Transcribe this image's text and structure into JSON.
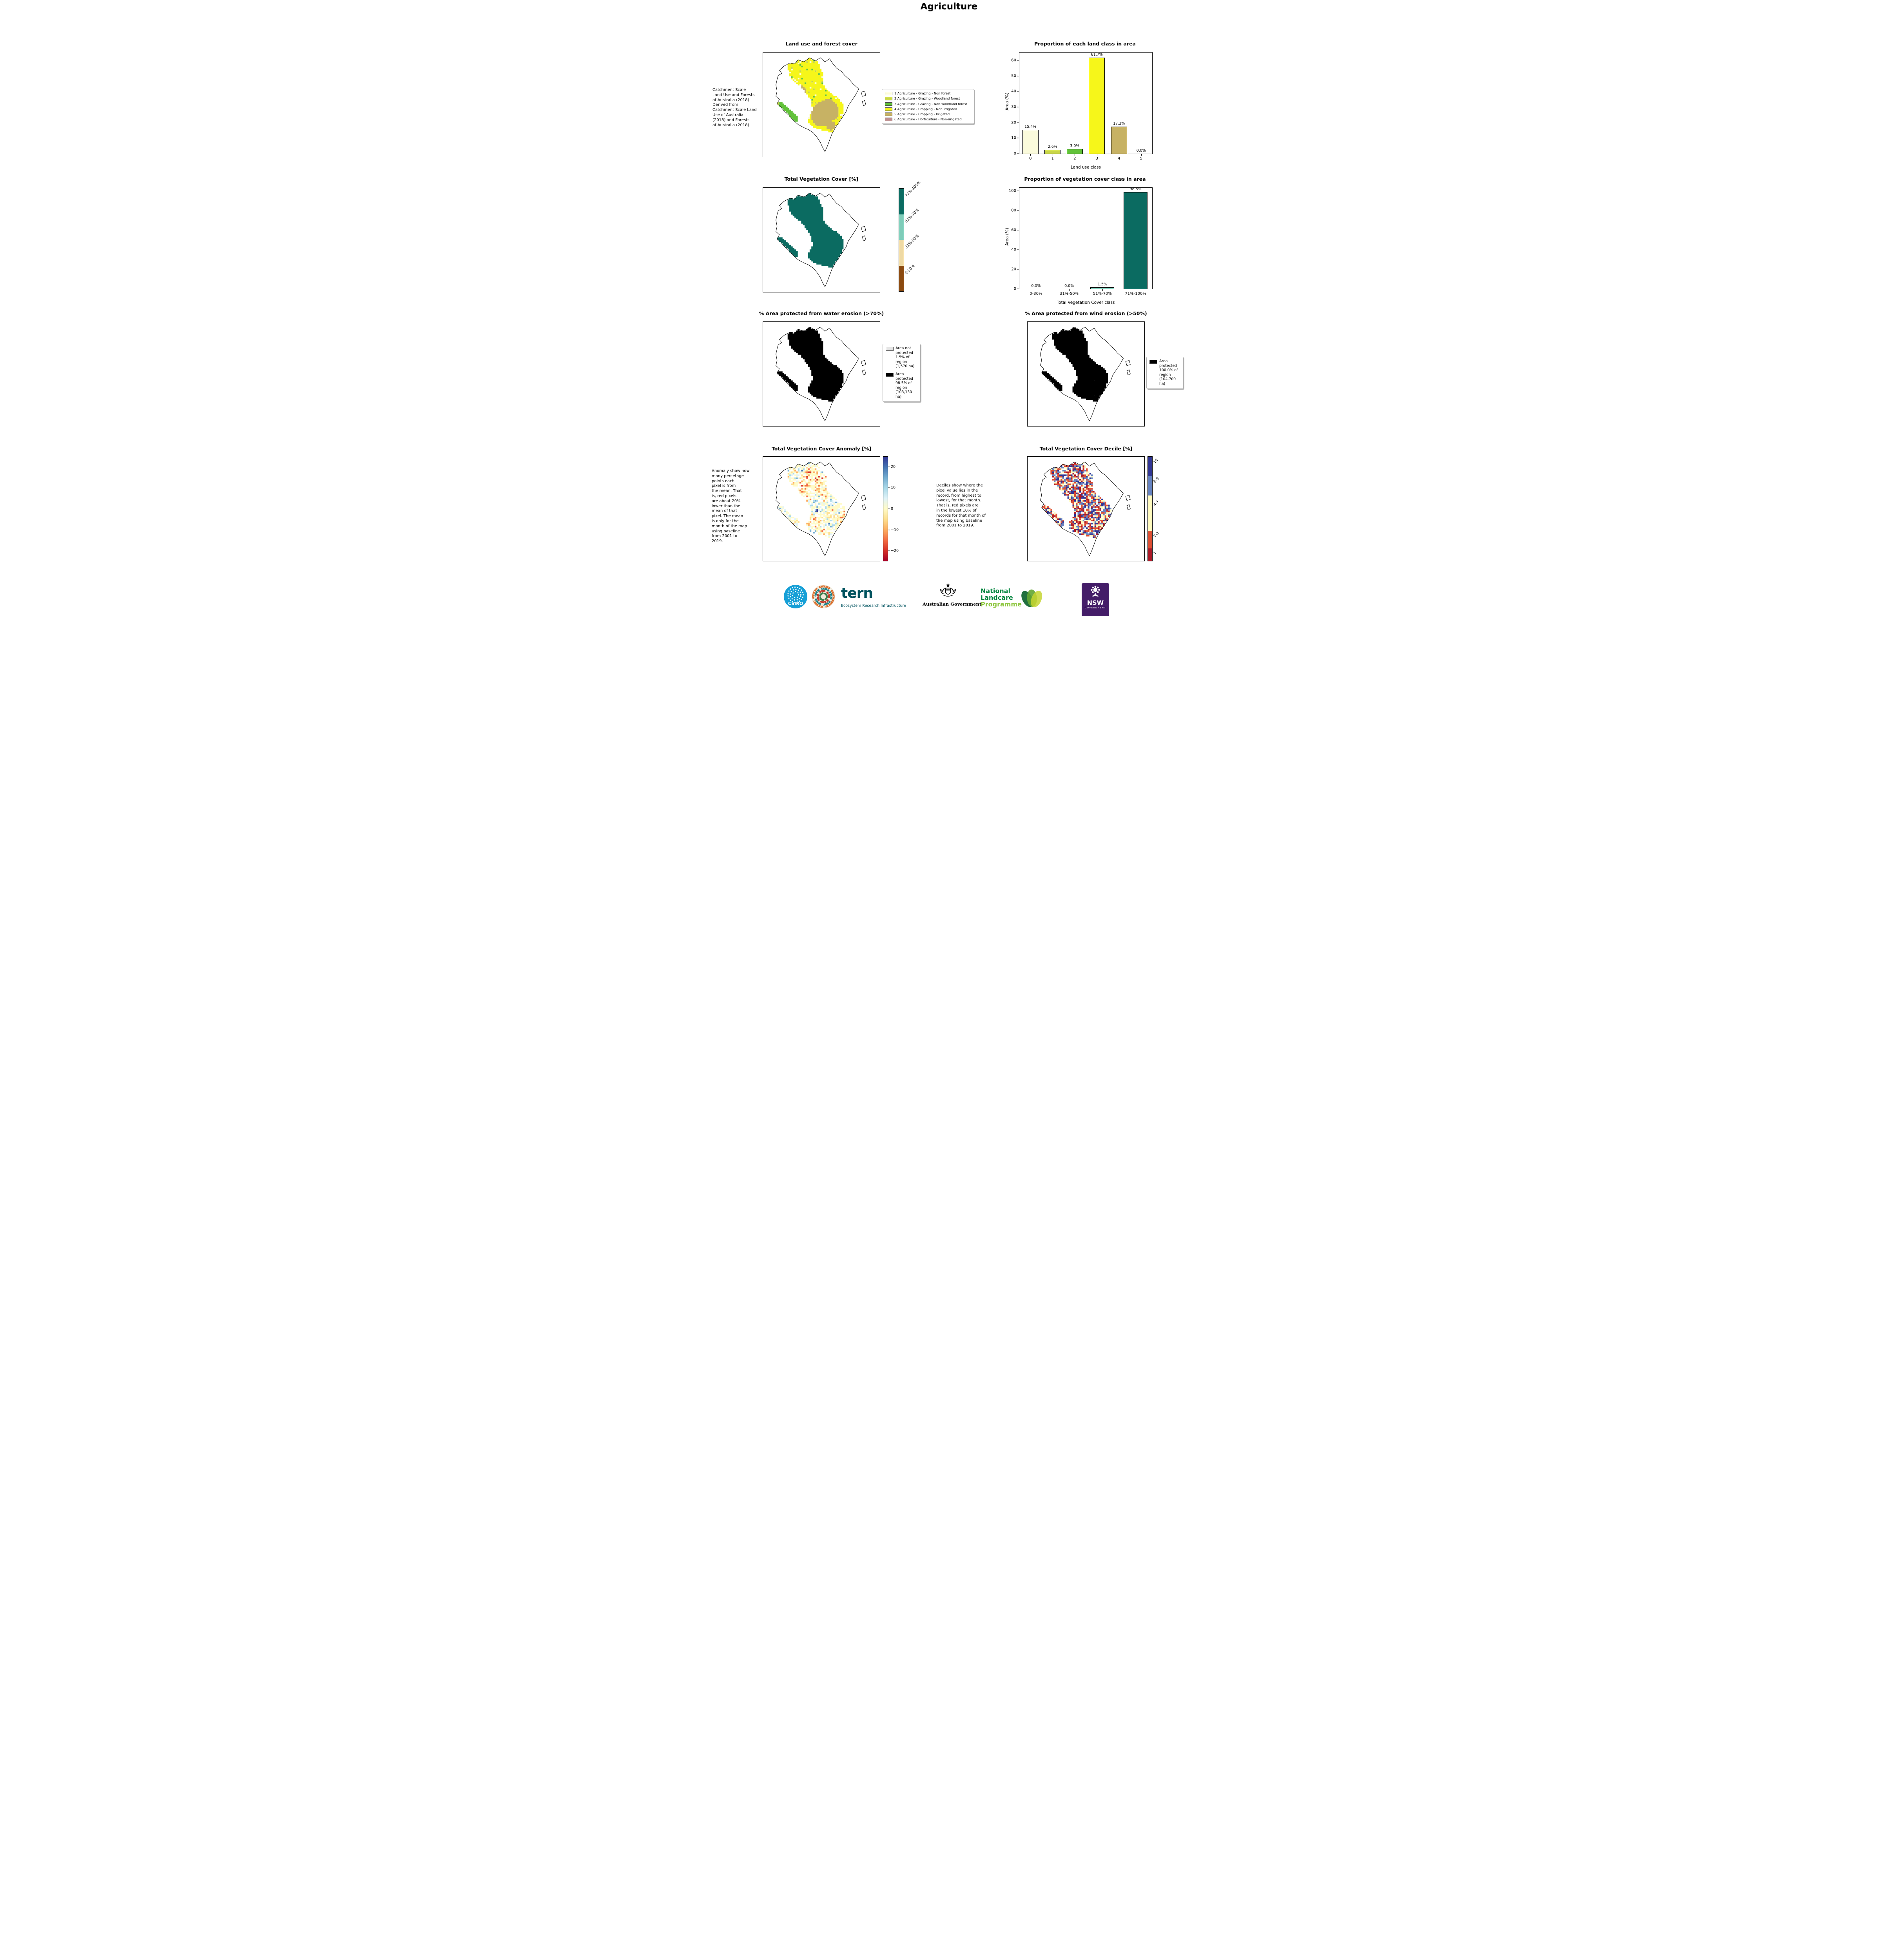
{
  "page": {
    "title": "Agriculture"
  },
  "panels": {
    "land_use_map": {
      "title": "Land use and forest cover",
      "caption": " Catchment Scale\nLand Use and Forests\nof Australia (2018)\nDerived from\nCatchment Scale Land\nUse of Australia\n(2018) and Forests\nof Australia (2018)",
      "legend": [
        {
          "label": "1 Agriculture - Grazing - Non forest",
          "color": "#fbfbdc"
        },
        {
          "label": "2 Agriculture - Grazing - Woodland forest",
          "color": "#c9d648"
        },
        {
          "label": "3 Agriculture - Grazing - Non-woodland forest",
          "color": "#62c23a"
        },
        {
          "label": "4 Agriculture - Cropping - Non-irrigated",
          "color": "#f6f61a"
        },
        {
          "label": "5 Agriculture - Cropping - Irrigated",
          "color": "#c7b264"
        },
        {
          "label": "6 Agriculture - Horticulture - Non-irrigated",
          "color": "#bc8f8f"
        }
      ]
    },
    "veg_cover_map": {
      "title": "Total Vegetation Cover [%]",
      "colorbar": [
        {
          "label": "71%-100%",
          "color": "#0b6b61"
        },
        {
          "label": "51%-70%",
          "color": "#7fccb9"
        },
        {
          "label": "31%-50%",
          "color": "#eed9a4"
        },
        {
          "label": "0-30%",
          "color": "#8a4a10"
        }
      ]
    },
    "water_erosion_map": {
      "title": "% Area protected from water erosion (>70%)",
      "legend": [
        {
          "label": "Area not\nprotected\n1.5% of\nregion\n(1,570 ha)",
          "color": "#e6e6e6"
        },
        {
          "label": "Area\nprotected\n98.5% of\nregion\n(103,130\nha)",
          "color": "#000000"
        }
      ]
    },
    "wind_erosion_map": {
      "title": "% Area protected from wind erosion (>50%)",
      "legend": [
        {
          "label": "Area\nprotected\n100.0% of\nregion\n(104,700\nha)",
          "color": "#000000"
        }
      ]
    },
    "anomaly_map": {
      "title": "Total Vegetation Cover Anomaly [%]",
      "caption": "Anomaly show how\nmany percetage\npoints each\npixel is from\nthe mean. That\nis, red pixels\nare about 20%\nlower than the\nmean of that\npixel. The mean\nis only for the\nmonth of the map\nusing baseline\nfrom 2001 to\n2019.",
      "palette": [
        "#a50026",
        "#d73027",
        "#f46d43",
        "#fdae61",
        "#fee090",
        "#fffbc8",
        "#e0f3f8",
        "#abd9e9",
        "#74add1",
        "#4575b4",
        "#313695"
      ],
      "colorbar_colors_top_to_bottom": [
        "#313695",
        "#4575b4",
        "#74add1",
        "#abd9e9",
        "#e0f3f8",
        "#fffbc8",
        "#fee090",
        "#fdae61",
        "#f46d43",
        "#d73027",
        "#a50026"
      ],
      "colorbar_range": [
        -25,
        25
      ],
      "colorbar_ticks": [
        {
          "v": 20,
          "label": "20"
        },
        {
          "v": 10,
          "label": "10"
        },
        {
          "v": 0,
          "label": "0"
        },
        {
          "v": -10,
          "label": "−10"
        },
        {
          "v": -20,
          "label": "−20"
        }
      ]
    },
    "decile_map": {
      "title": "Total Vegetation Cover Decile [%]",
      "caption": "Deciles show where the\npixel value lies in the\nrecord, from highest to\nlowest, for that month.\nThat is, red pixels are\nin the lowest 10% of\nrecords for that month of\nthe map using baseline\nfrom 2001 to 2019.",
      "colorbar": [
        {
          "label": "10",
          "color": "#313695",
          "flex": 2
        },
        {
          "label": "8-9",
          "color": "#6683c1",
          "flex": 2
        },
        {
          "label": "4-7",
          "color": "#fffbc0",
          "flex": 3.6
        },
        {
          "label": "2-3",
          "color": "#df4f33",
          "flex": 1.8
        },
        {
          "label": "1",
          "color": "#ac1927",
          "flex": 1.3
        }
      ]
    }
  },
  "chart_data": [
    {
      "id": "land_class_chart",
      "type": "bar",
      "title": "Proportion of each land class in area",
      "categories": [
        "0",
        "1",
        "2",
        "3",
        "4",
        "5"
      ],
      "values": [
        15.4,
        2.6,
        3.0,
        61.7,
        17.3,
        0.0
      ],
      "bar_labels": [
        "15.4%",
        "2.6%",
        "3.0%",
        "61.7%",
        "17.3%",
        "0.0%"
      ],
      "colors": [
        "#fbfbdc",
        "#c9d648",
        "#62c23a",
        "#f6f61a",
        "#c7b264",
        "#bc8f8f"
      ],
      "xlabel": "Land use class",
      "ylabel": "Area (%)",
      "ylim": [
        0,
        65
      ],
      "yticks": [
        0,
        10,
        20,
        30,
        40,
        50,
        60
      ],
      "legend_position": "none",
      "grid": false
    },
    {
      "id": "veg_class_chart",
      "type": "bar",
      "title": "Proportion of vegetation cover class in area",
      "categories": [
        "0-30%",
        "31%-50%",
        "51%-70%",
        "71%-100%"
      ],
      "values": [
        0.0,
        0.0,
        1.5,
        98.5
      ],
      "bar_labels": [
        "0.0%",
        "0.0%",
        "1.5%",
        "98.5%"
      ],
      "colors": [
        "#8a4a10",
        "#eed9a4",
        "#7fccb9",
        "#0b6b61"
      ],
      "xlabel": "Total Vegetation Cover class",
      "ylabel": "Area (%)",
      "ylim": [
        0,
        103
      ],
      "yticks": [
        0,
        20,
        40,
        60,
        80,
        100
      ],
      "legend_position": "none",
      "grid": false
    }
  ],
  "footer": {
    "csiro": "CSIRO",
    "tern": "tern",
    "tern_sub": "Ecosystem Research Infrastructure",
    "aus_gov": "Australian Government",
    "landcare_1": "National",
    "landcare_2": "Landcare",
    "landcare_3": "Programme",
    "nsw": "NSW",
    "nsw_sub": "GOVERNMENT",
    "colors": {
      "csiro_bg": "#169fd6",
      "tern": "#00535f",
      "landcare_dark": "#00843d",
      "landcare_light": "#8dc63f",
      "nsw_bg": "#441d68"
    }
  }
}
